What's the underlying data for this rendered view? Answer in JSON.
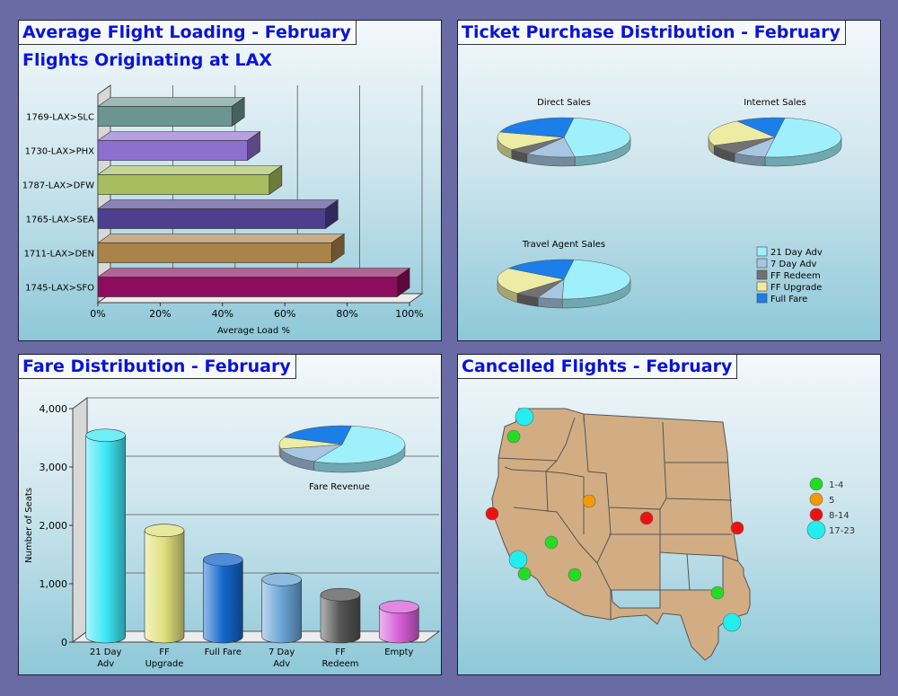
{
  "panels": {
    "loading": {
      "title": "Average Flight Loading - February",
      "subtitle": "Flights Originating at LAX"
    },
    "tickets": {
      "title": "Ticket Purchase Distribution - February"
    },
    "fares": {
      "title": "Fare Distribution - February"
    },
    "cancelled": {
      "title": "Cancelled Flights - February"
    }
  },
  "chart_data": [
    {
      "type": "bar",
      "orientation": "horizontal",
      "title": "Average Flight Loading - February",
      "subtitle": "Flights Originating at LAX",
      "xlabel": "Average Load %",
      "ylabel": "",
      "xlim": [
        0,
        100
      ],
      "x_ticks": [
        "0%",
        "20%",
        "40%",
        "60%",
        "80%",
        "100%"
      ],
      "categories": [
        "1769-LAX>SLC",
        "1730-LAX>PHX",
        "1787-LAX>DFW",
        "1765-LAX>SEA",
        "1711-LAX>DEN",
        "1745-LAX>SFO"
      ],
      "values": [
        43,
        48,
        55,
        73,
        75,
        96
      ],
      "colors": [
        "#6b9590",
        "#8d6fd0",
        "#a6be5e",
        "#4d3f8e",
        "#a98348",
        "#8c0d5c"
      ],
      "grid": true
    },
    {
      "type": "pie",
      "title": "Ticket Purchase Distribution - February",
      "legend": [
        "21 Day Adv",
        "7 Day Adv",
        "FF Redeem",
        "FF Upgrade",
        "Full Fare"
      ],
      "legend_colors": [
        "#9ff0fb",
        "#a6c6e2",
        "#727272",
        "#ececa4",
        "#1c7ee8"
      ],
      "legend_position": "bottom-right",
      "pies": [
        {
          "name": "Direct Sales",
          "values": [
            45,
            12,
            5,
            15,
            23
          ]
        },
        {
          "name": "Internet Sales",
          "values": [
            50,
            8,
            8,
            22,
            12
          ]
        },
        {
          "name": "Travel Agent Sales",
          "values": [
            48,
            6,
            6,
            22,
            18
          ]
        }
      ]
    },
    {
      "type": "bar",
      "style": "3d-cylinder",
      "title": "Fare Distribution - February",
      "xlabel": "",
      "ylabel": "Number of Seats",
      "ylim": [
        0,
        4000
      ],
      "y_ticks": [
        "0",
        "1,000",
        "2,000",
        "3,000",
        "4,000"
      ],
      "categories": [
        "21 Day Adv",
        "FF Upgrade",
        "Full Fare",
        "7 Day Adv",
        "FF Redeem",
        "Empty"
      ],
      "values": [
        3450,
        1820,
        1320,
        980,
        720,
        510
      ],
      "colors": [
        "#3fe8f6",
        "#e0e07c",
        "#1467cc",
        "#6aa4d6",
        "#555555",
        "#d860d8"
      ],
      "grid": true,
      "inset_pie": {
        "name": "Fare Revenue",
        "values": [
          55,
          14,
          0,
          10,
          21
        ],
        "colors": [
          "#9ff0fb",
          "#a6c6e2",
          "#727272",
          "#ececa4",
          "#1c7ee8"
        ]
      }
    },
    {
      "type": "map",
      "title": "Cancelled Flights - February",
      "legend": [
        {
          "label": "1-4",
          "color": "#22dd22",
          "size": 7
        },
        {
          "label": "5",
          "color": "#f39a00",
          "size": 7
        },
        {
          "label": "8-14",
          "color": "#ee1111",
          "size": 7
        },
        {
          "label": "17-23",
          "color": "#22eef0",
          "size": 10
        }
      ],
      "markers": [
        {
          "place": "Seattle",
          "class": "17-23"
        },
        {
          "place": "Portland",
          "class": "1-4"
        },
        {
          "place": "San Francisco",
          "class": "8-14"
        },
        {
          "place": "Salt Lake City",
          "class": "5"
        },
        {
          "place": "Denver",
          "class": "8-14"
        },
        {
          "place": "Kansas City",
          "class": "8-14"
        },
        {
          "place": "Las Vegas",
          "class": "1-4"
        },
        {
          "place": "Los Angeles",
          "class": "17-23"
        },
        {
          "place": "San Diego",
          "class": "1-4"
        },
        {
          "place": "Phoenix",
          "class": "1-4"
        },
        {
          "place": "Dallas",
          "class": "1-4"
        },
        {
          "place": "Houston",
          "class": "17-23"
        }
      ]
    }
  ]
}
